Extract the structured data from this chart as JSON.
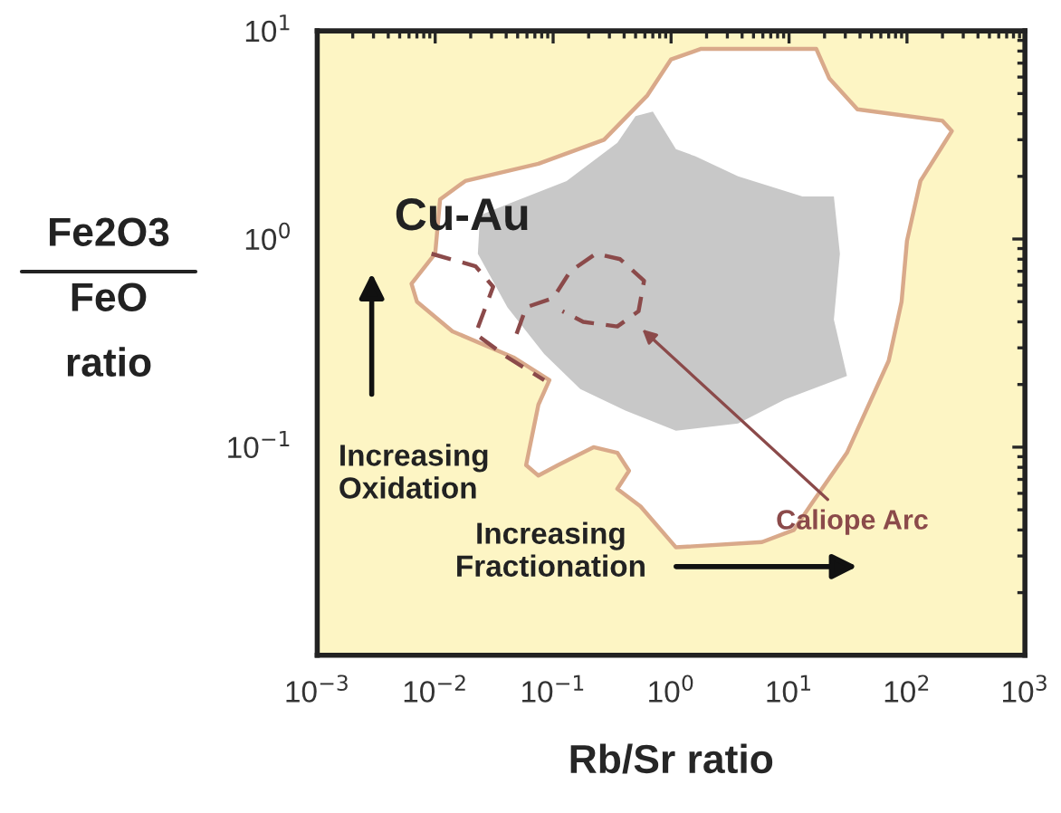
{
  "chart_data": {
    "type": "line",
    "xlabel": "Rb/Sr ratio",
    "ylabel": "Fe2O3\nFeO\nratio",
    "log": "xy",
    "xlim": [
      0.001,
      1000
    ],
    "ylim": [
      0.01,
      10
    ],
    "xticks": [
      {
        "value": 0.001,
        "label": "10$^{−3}$"
      },
      {
        "value": 0.01,
        "label": "10$^{−2}$"
      },
      {
        "value": 0.1,
        "label": "10$^{−1}$"
      },
      {
        "value": 1,
        "label": "10$^{0}$"
      },
      {
        "value": 10,
        "label": "10$^{1}$"
      },
      {
        "value": 100,
        "label": "10$^{2}$"
      },
      {
        "value": 1000,
        "label": "10$^{3}$"
      }
    ],
    "yticks": [
      {
        "value": 0.01,
        "label": null
      },
      {
        "value": 0.1,
        "label": "10$^{−1}$"
      },
      {
        "value": 1,
        "label": "10$^{0}$"
      },
      {
        "value": 10,
        "label": "10$^{1}$"
      }
    ],
    "annotations": [
      "Cu-Au",
      "Increasing\nOxidation",
      "Increasing\nFractionation"
    ],
    "series": [
      {
        "type": "area",
        "color": "#ffffff",
        "x": [
          1.0,
          1.8,
          17,
          22,
          38,
          200,
          240,
          200,
          130,
          100,
          90,
          70,
          31,
          15,
          11,
          5.9,
          1.1,
          0.55,
          0.35,
          0.44,
          0.35,
          0.22,
          0.11,
          0.075,
          0.059,
          0.075,
          0.093,
          0.046,
          0.014,
          0.007,
          0.0063,
          0.01,
          0.011,
          0.018,
          0.075,
          0.27,
          0.63,
          1.0
        ],
        "values": [
          7.3,
          8.2,
          8.2,
          5.9,
          4.2,
          3.7,
          3.3,
          2.8,
          1.9,
          0.98,
          0.5,
          0.26,
          0.094,
          0.052,
          0.04,
          0.035,
          0.033,
          0.052,
          0.063,
          0.077,
          0.094,
          0.1,
          0.082,
          0.073,
          0.082,
          0.16,
          0.21,
          0.27,
          0.36,
          0.5,
          0.61,
          0.85,
          1.55,
          1.9,
          2.3,
          3.0,
          4.9,
          7.3
        ]
      },
      {
        "type": "area",
        "color": "#c8c8c8",
        "x": [
          0.045,
          0.13,
          0.35,
          0.5,
          0.7,
          1.1,
          1.6,
          3.7,
          13,
          24,
          27,
          24,
          31,
          9.3,
          3.7,
          1.1,
          0.41,
          0.17,
          0.084,
          0.041,
          0.023,
          0.024
        ],
        "values": [
          1.5,
          1.9,
          2.9,
          3.9,
          4.1,
          2.7,
          2.5,
          2.0,
          1.6,
          1.6,
          0.85,
          0.41,
          0.22,
          0.17,
          0.13,
          0.12,
          0.15,
          0.19,
          0.28,
          0.47,
          0.85,
          1.3
        ]
      },
      {
        "name": "Caliope Arc",
        "color": "#8b4a4a",
        "line_style": "dashed",
        "x": [
          0.0093,
          0.022,
          0.031,
          0.022,
          0.041,
          0.084,
          null,
          0.049,
          0.059,
          0.1,
          0.14,
          0.23,
          0.37,
          0.59,
          0.53,
          0.35,
          0.18,
          0.12
        ],
        "values": [
          0.85,
          0.74,
          0.59,
          0.35,
          0.27,
          0.21,
          null,
          0.35,
          0.47,
          0.52,
          0.7,
          0.85,
          0.8,
          0.63,
          0.45,
          0.38,
          0.4,
          0.45
        ]
      }
    ]
  }
}
